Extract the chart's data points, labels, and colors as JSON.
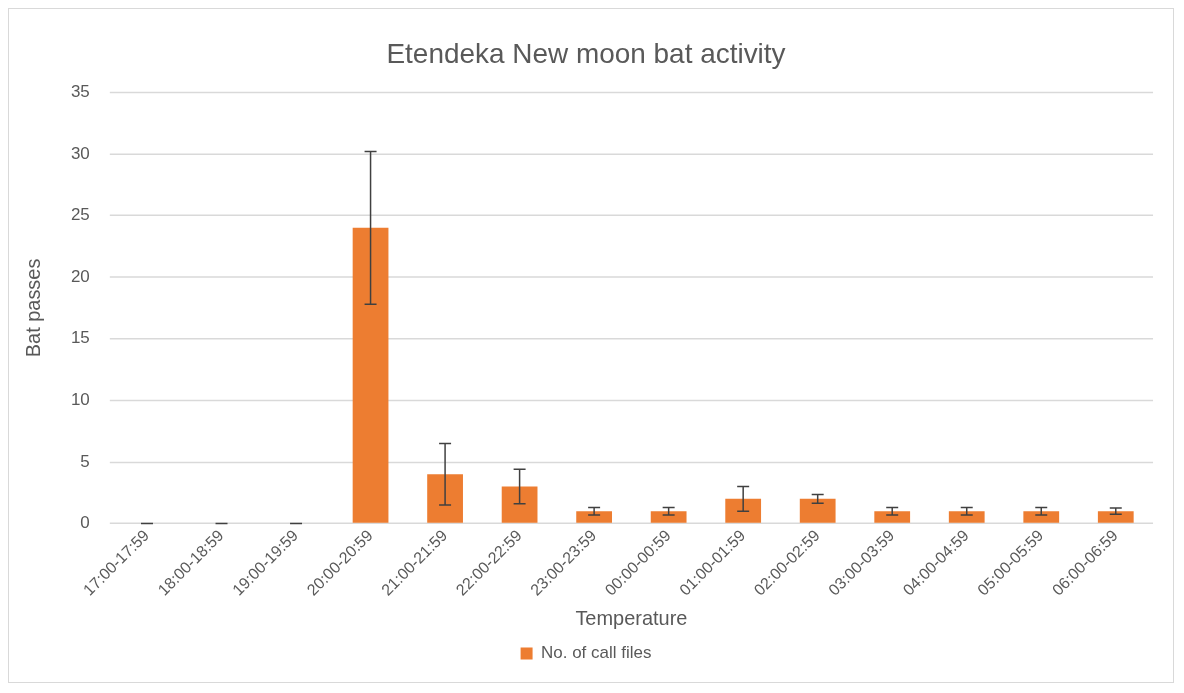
{
  "chart_data": {
    "type": "bar",
    "title": "Etendeka New moon bat activity",
    "xlabel": "Temperature",
    "ylabel": "Bat passes",
    "categories": [
      "17:00-17:59",
      "18:00-18:59",
      "19:00-19:59",
      "20:00-20:59",
      "21:00-21:59",
      "22:00-22:59",
      "23:00-23:59",
      "00:00-00:59",
      "01:00-01:59",
      "02:00-02:59",
      "03:00-03:59",
      "04:00-04:59",
      "05:00-05:59",
      "06:00-06:59"
    ],
    "series": [
      {
        "name": "No. of call files",
        "color": "#ed7d31",
        "values": [
          0,
          0,
          0,
          24,
          4,
          3,
          1,
          1,
          2,
          2,
          1,
          1,
          1,
          1
        ],
        "errors": [
          0,
          0,
          0,
          6.2,
          2.5,
          1.4,
          0.3,
          0.3,
          1.0,
          0.35,
          0.3,
          0.3,
          0.3,
          0.25
        ]
      }
    ],
    "ylim": [
      0,
      35
    ],
    "yticks": [
      0,
      5,
      10,
      15,
      20,
      25,
      30,
      35
    ],
    "grid": "y",
    "legend": "bottom"
  }
}
